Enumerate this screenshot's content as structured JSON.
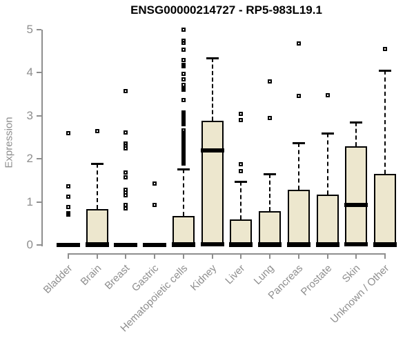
{
  "title": "ENSG00000214727 - RP5-983L19.1",
  "chart_data": {
    "type": "boxplot",
    "title": "ENSG00000214727 - RP5-983L19.1",
    "xlabel": "",
    "ylabel": "Expression",
    "ylim": [
      0,
      5
    ],
    "yticks": [
      "0",
      "1",
      "2",
      "3",
      "4",
      "5"
    ],
    "grid": false,
    "legend": "none",
    "colors": {
      "box_fill": "#EDE7CE",
      "box_border": "#000000",
      "median": "#000000",
      "whisker": "#000000",
      "axis": "#8e8e8e",
      "tick_label": "#8e8e8e",
      "title": "#000000",
      "background": "#ffffff"
    },
    "categories": [
      "Bladder",
      "Brain",
      "Breast",
      "Gastric",
      "Hematopoietic cells",
      "Kidney",
      "Liver",
      "Lung",
      "Pancreas",
      "Prostate",
      "Skin",
      "Unknown / Other"
    ],
    "boxes": [
      {
        "category": "Bladder",
        "whisker_low": 0,
        "q1": 0,
        "median": 0,
        "q3": 0,
        "whisker_high": 0,
        "outliers": [
          0.7,
          0.74,
          0.88,
          1.12,
          1.36,
          2.6
        ]
      },
      {
        "category": "Brain",
        "whisker_low": 0,
        "q1": 0,
        "median": 0,
        "q3": 0.83,
        "whisker_high": 1.89,
        "outliers": [
          2.65
        ]
      },
      {
        "category": "Breast",
        "whisker_low": 0,
        "q1": 0,
        "median": 0,
        "q3": 0,
        "whisker_high": 0,
        "outliers": [
          0.85,
          0.93,
          1.15,
          1.22,
          1.28,
          1.57,
          1.68,
          2.25,
          2.3,
          2.36,
          2.61,
          3.57
        ]
      },
      {
        "category": "Gastric",
        "whisker_low": 0,
        "q1": 0,
        "median": 0,
        "q3": 0,
        "whisker_high": 0,
        "outliers": [
          0.93,
          1.42
        ]
      },
      {
        "category": "Hematopoietic cells",
        "whisker_low": 0,
        "q1": 0,
        "median": 0,
        "q3": 0.67,
        "whisker_high": 1.76,
        "outliers": [
          1.89,
          1.92,
          1.95,
          1.98,
          2.02,
          2.05,
          2.08,
          2.12,
          2.15,
          2.18,
          2.22,
          2.25,
          2.28,
          2.32,
          2.35,
          2.38,
          2.42,
          2.45,
          2.48,
          2.52,
          2.55,
          2.58,
          2.62,
          2.66,
          2.8,
          2.84,
          2.88,
          2.92,
          2.96,
          3.0,
          3.04,
          3.08,
          3.37,
          3.6,
          3.63,
          3.72,
          3.85,
          3.98,
          4.15,
          4.18,
          4.3,
          4.54,
          4.7,
          4.74,
          5.0
        ]
      },
      {
        "category": "Kidney",
        "whisker_low": 0,
        "q1": 0,
        "median": 2.2,
        "q3": 2.88,
        "whisker_high": 4.34,
        "outliers": []
      },
      {
        "category": "Liver",
        "whisker_low": 0,
        "q1": 0,
        "median": 0,
        "q3": 0.6,
        "whisker_high": 1.47,
        "outliers": [
          1.71,
          1.87,
          2.9,
          3.05
        ]
      },
      {
        "category": "Lung",
        "whisker_low": 0,
        "q1": 0,
        "median": 0,
        "q3": 0.78,
        "whisker_high": 1.65,
        "outliers": [
          2.95,
          3.8
        ]
      },
      {
        "category": "Pancreas",
        "whisker_low": 0,
        "q1": 0,
        "median": 0,
        "q3": 1.28,
        "whisker_high": 2.37,
        "outliers": [
          3.46,
          4.68
        ]
      },
      {
        "category": "Prostate",
        "whisker_low": 0,
        "q1": 0,
        "median": 0,
        "q3": 1.17,
        "whisker_high": 2.6,
        "outliers": [
          3.48
        ]
      },
      {
        "category": "Skin",
        "whisker_low": 0,
        "q1": 0,
        "median": 0.93,
        "q3": 2.29,
        "whisker_high": 2.85,
        "outliers": []
      },
      {
        "category": "Unknown / Other",
        "whisker_low": 0,
        "q1": 0,
        "median": 0,
        "q3": 1.65,
        "whisker_high": 4.05,
        "outliers": [
          4.55
        ]
      }
    ]
  }
}
